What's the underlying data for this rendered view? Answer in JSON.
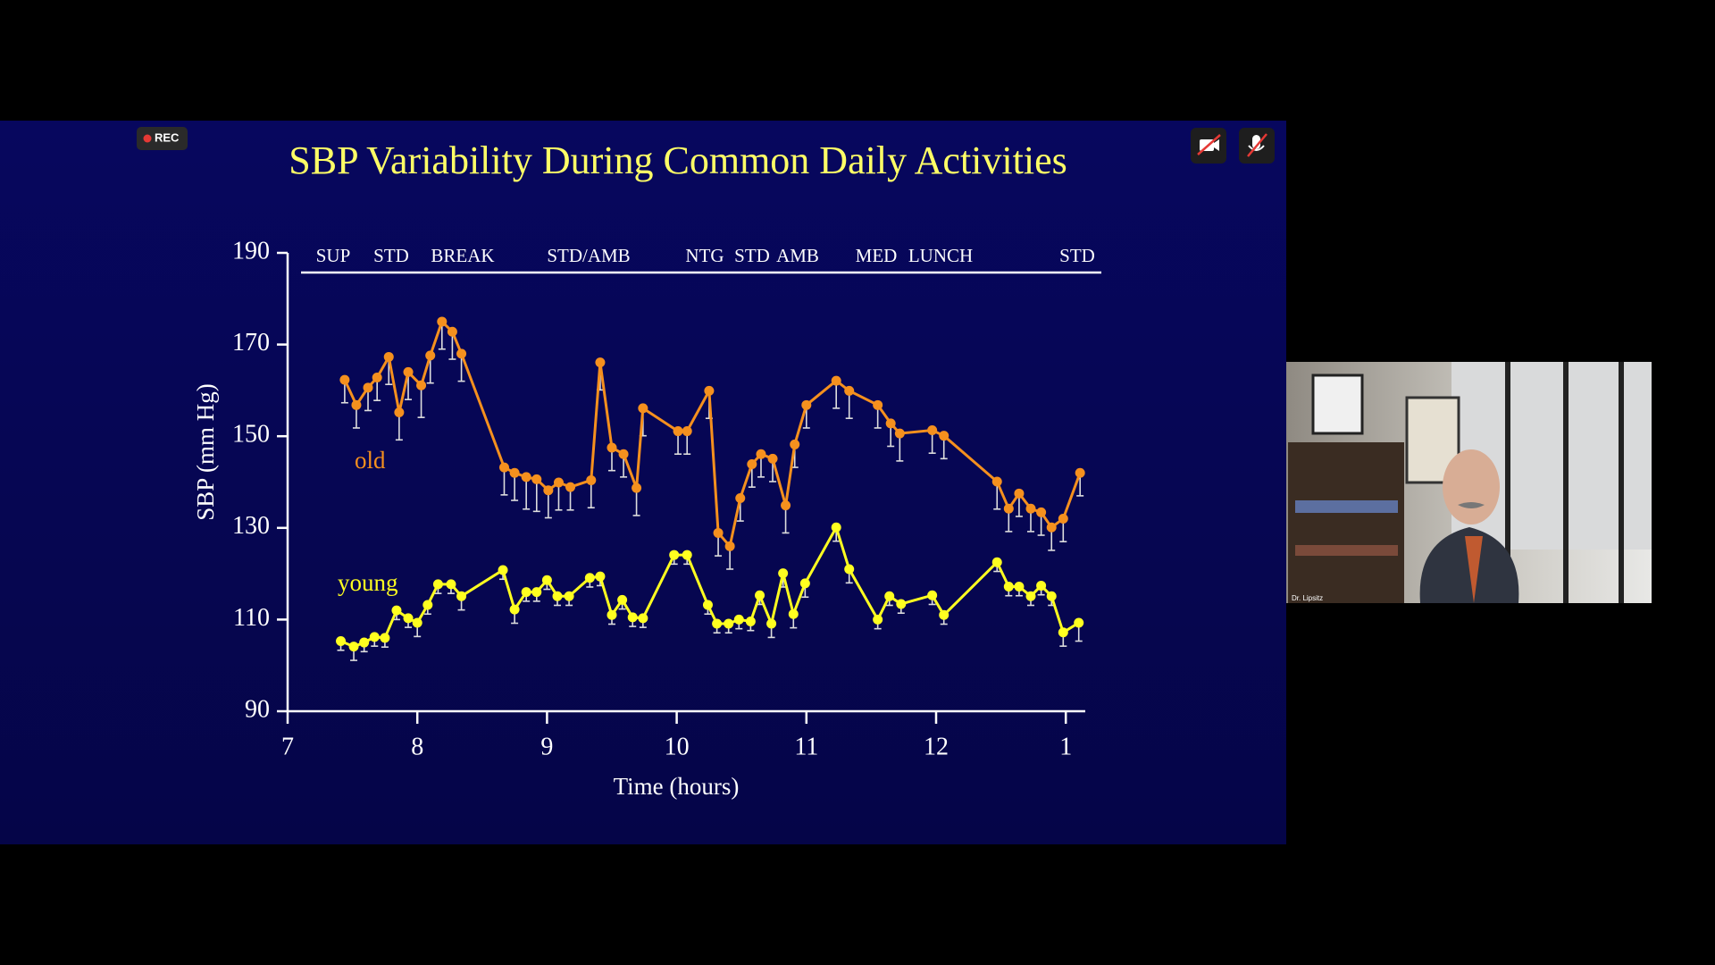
{
  "ui": {
    "rec": "REC",
    "participant": "Dr. Lipsitz"
  },
  "chart_data": {
    "type": "line",
    "title": "SBP Variability During Common Daily Activities",
    "x_label": "Time (hours)",
    "y_label": "SBP (mm Hg)",
    "annotations": [
      "SUP",
      "STD",
      "BREAK",
      "STD/AMB",
      "NTG",
      "STD",
      "AMB",
      "MED",
      "LUNCH",
      "STD"
    ],
    "xlim": [
      7,
      13.15
    ],
    "xticks": [
      7,
      8,
      9,
      10,
      11,
      12,
      {
        "value": 13,
        "label": "1"
      }
    ],
    "ylim": [
      90,
      190
    ],
    "yticks": [
      90,
      110,
      130,
      150,
      170,
      190
    ],
    "series": [
      {
        "name": "old",
        "color": "#f5901e",
        "x": [
          7.44,
          7.53,
          7.62,
          7.69,
          7.78,
          7.86,
          7.93,
          8.03,
          8.1,
          8.19,
          8.27,
          8.34,
          8.67,
          8.75,
          8.84,
          8.92,
          9.01,
          9.09,
          9.18,
          9.34,
          9.41,
          9.5,
          9.59,
          9.69,
          9.74,
          10.01,
          10.08,
          10.25,
          10.32,
          10.41,
          10.49,
          10.58,
          10.65,
          10.74,
          10.84,
          10.91,
          11.0,
          11.23,
          11.33,
          11.55,
          11.65,
          11.72,
          11.97,
          12.06,
          12.47,
          12.56,
          12.64,
          12.73,
          12.81,
          12.89,
          12.98,
          13.11
        ],
        "values": [
          162.3,
          156.8,
          160.6,
          162.8,
          167.3,
          155.2,
          164.0,
          161.1,
          167.6,
          175.0,
          172.8,
          168.0,
          143.2,
          142.0,
          141.1,
          140.6,
          138.2,
          139.9,
          138.9,
          140.4,
          166.1,
          147.5,
          146.1,
          138.7,
          156.1,
          151.1,
          151.1,
          159.9,
          128.9,
          126.0,
          136.5,
          143.9,
          146.1,
          145.1,
          134.9,
          148.2,
          156.8,
          162.1,
          159.9,
          156.8,
          152.8,
          150.6,
          151.3,
          150.1,
          140.1,
          134.2,
          137.5,
          134.2,
          133.4,
          130.1,
          132.0,
          142.0
        ],
        "errors": [
          5,
          5,
          5,
          5,
          6,
          6,
          6,
          7,
          6,
          6,
          6,
          6,
          6,
          6,
          7,
          7,
          6,
          6,
          5,
          6,
          6,
          5,
          5,
          6,
          6,
          5,
          5,
          6,
          5,
          5,
          5,
          5,
          5,
          5,
          6,
          5,
          5,
          6,
          6,
          5,
          5,
          6,
          5,
          5,
          6,
          5,
          5,
          5,
          5,
          5,
          5,
          5
        ]
      },
      {
        "name": "young",
        "color": "#ffff20",
        "x": [
          7.41,
          7.51,
          7.59,
          7.67,
          7.75,
          7.84,
          7.93,
          8.0,
          8.08,
          8.16,
          8.26,
          8.34,
          8.66,
          8.75,
          8.84,
          8.92,
          9.0,
          9.08,
          9.17,
          9.33,
          9.41,
          9.5,
          9.58,
          9.66,
          9.74,
          9.98,
          10.08,
          10.24,
          10.31,
          10.4,
          10.48,
          10.57,
          10.64,
          10.73,
          10.82,
          10.9,
          10.99,
          11.23,
          11.33,
          11.55,
          11.64,
          11.73,
          11.97,
          12.06,
          12.47,
          12.56,
          12.64,
          12.73,
          12.81,
          12.89,
          12.98,
          13.1
        ],
        "values": [
          105.3,
          104.1,
          105.0,
          106.2,
          106.0,
          112.0,
          110.3,
          109.3,
          113.2,
          117.7,
          117.7,
          115.1,
          120.8,
          112.2,
          116.0,
          116.0,
          118.6,
          115.1,
          115.1,
          119.1,
          119.4,
          111.0,
          114.3,
          110.5,
          110.3,
          124.1,
          124.1,
          113.2,
          109.1,
          109.1,
          110.0,
          109.6,
          115.3,
          109.1,
          120.1,
          111.2,
          117.9,
          130.1,
          121.0,
          110.0,
          115.1,
          113.4,
          115.3,
          111.0,
          122.5,
          117.2,
          117.2,
          115.1,
          117.4,
          115.1,
          107.2,
          109.3
        ],
        "errors": [
          2,
          3,
          2,
          2,
          2,
          2,
          2,
          3,
          2,
          2,
          2,
          3,
          2,
          3,
          2,
          2,
          2,
          2,
          2,
          2,
          2,
          2,
          2,
          2,
          2,
          2,
          2,
          2,
          2,
          2,
          2,
          2,
          2,
          3,
          3,
          3,
          3,
          3,
          3,
          2,
          2,
          2,
          2,
          2,
          2,
          2,
          2,
          2,
          2,
          2,
          3,
          4
        ]
      }
    ]
  }
}
